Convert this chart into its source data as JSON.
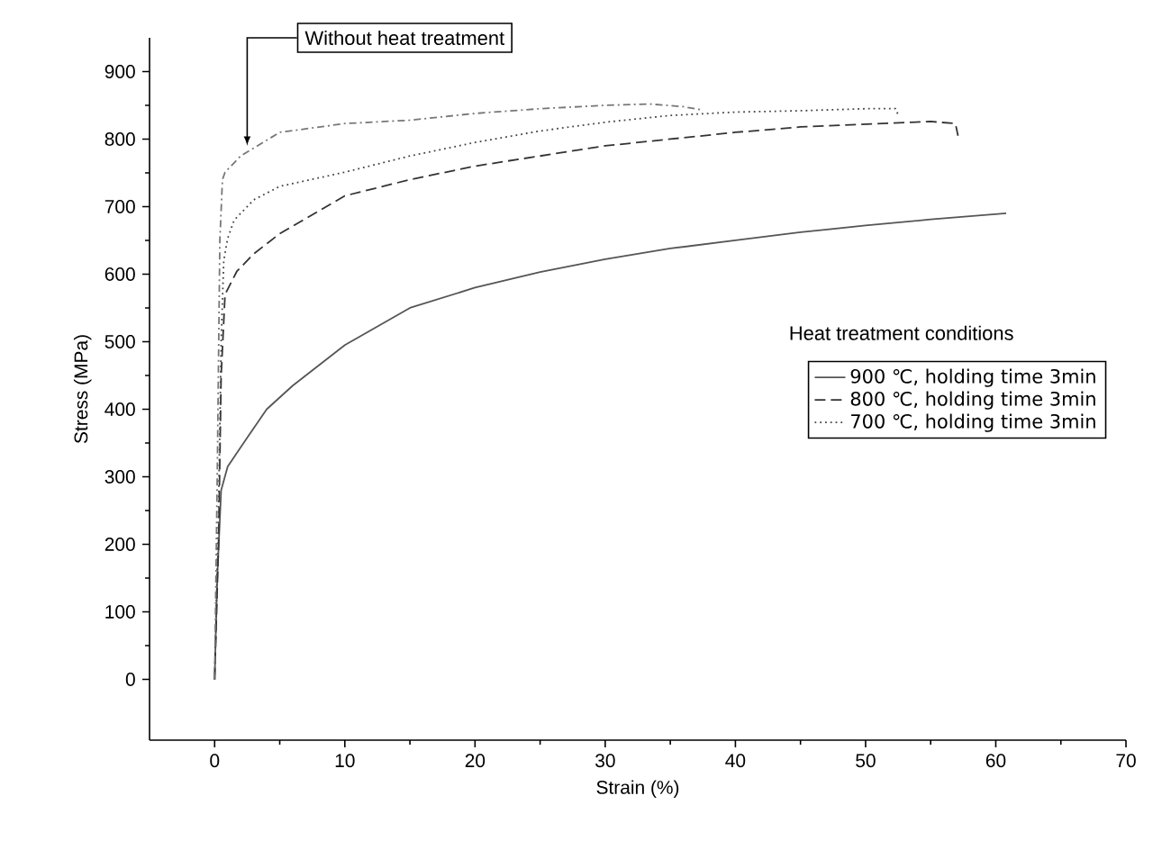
{
  "chart_data": {
    "type": "line",
    "xlabel": "Strain (%)",
    "ylabel": "Stress (MPa)",
    "legend_title": "Heat treatment conditions",
    "legend": "right",
    "xlim": [
      -5,
      70
    ],
    "ylim": [
      -90,
      950
    ],
    "xticks": [
      0,
      10,
      20,
      30,
      40,
      50,
      60,
      70
    ],
    "yticks": [
      0,
      100,
      200,
      300,
      400,
      500,
      600,
      700,
      800,
      900
    ],
    "grid": false,
    "annotations": [
      {
        "text": "Without heat treatment",
        "x": 2.5,
        "y": 790
      }
    ],
    "series": [
      {
        "name": "900 ℃, holding time 3min",
        "color": "#555555",
        "line_style": "solid",
        "x": [
          0,
          0.2,
          0.5,
          1,
          2.4,
          4,
          6,
          10,
          15,
          20,
          25,
          30,
          35,
          40,
          45,
          50,
          55,
          60.8
        ],
        "values": [
          0,
          150,
          280,
          315,
          355,
          400,
          435,
          495,
          550,
          580,
          603,
          622,
          638,
          650,
          662,
          672,
          681,
          690
        ]
      },
      {
        "name": "800 ℃, holding time 3min",
        "color": "#333333",
        "line_style": "dashed",
        "x": [
          0,
          0.3,
          0.5,
          0.8,
          1.7,
          3,
          5,
          10,
          15,
          20,
          25,
          30,
          35,
          40,
          45,
          50,
          55,
          56.9,
          57.1
        ],
        "values": [
          0,
          200,
          450,
          570,
          604,
          630,
          660,
          716,
          740,
          760,
          775,
          790,
          800,
          810,
          818,
          822,
          826,
          823,
          805
        ]
      },
      {
        "name": "700 ℃, holding time 3min",
        "color": "#444444",
        "line_style": "dotted",
        "x": [
          0,
          0.3,
          0.5,
          0.7,
          1,
          1.5,
          3,
          5,
          10,
          15,
          20,
          25,
          30,
          35,
          40,
          45,
          50,
          52.3,
          52.5
        ],
        "values": [
          0,
          250,
          500,
          620,
          653,
          680,
          710,
          730,
          751,
          775,
          795,
          812,
          825,
          835,
          840,
          842,
          845,
          845,
          836
        ]
      },
      {
        "color": "#777777",
        "line_style": "dashdot",
        "x": [
          0,
          0.2,
          0.4,
          0.6,
          0.8,
          2,
          5,
          10,
          15,
          20,
          25,
          30,
          33.4,
          36,
          37.5
        ],
        "values": [
          0,
          300,
          650,
          740,
          751,
          775,
          810,
          823,
          828,
          838,
          845,
          850,
          852,
          848,
          843
        ]
      }
    ]
  }
}
